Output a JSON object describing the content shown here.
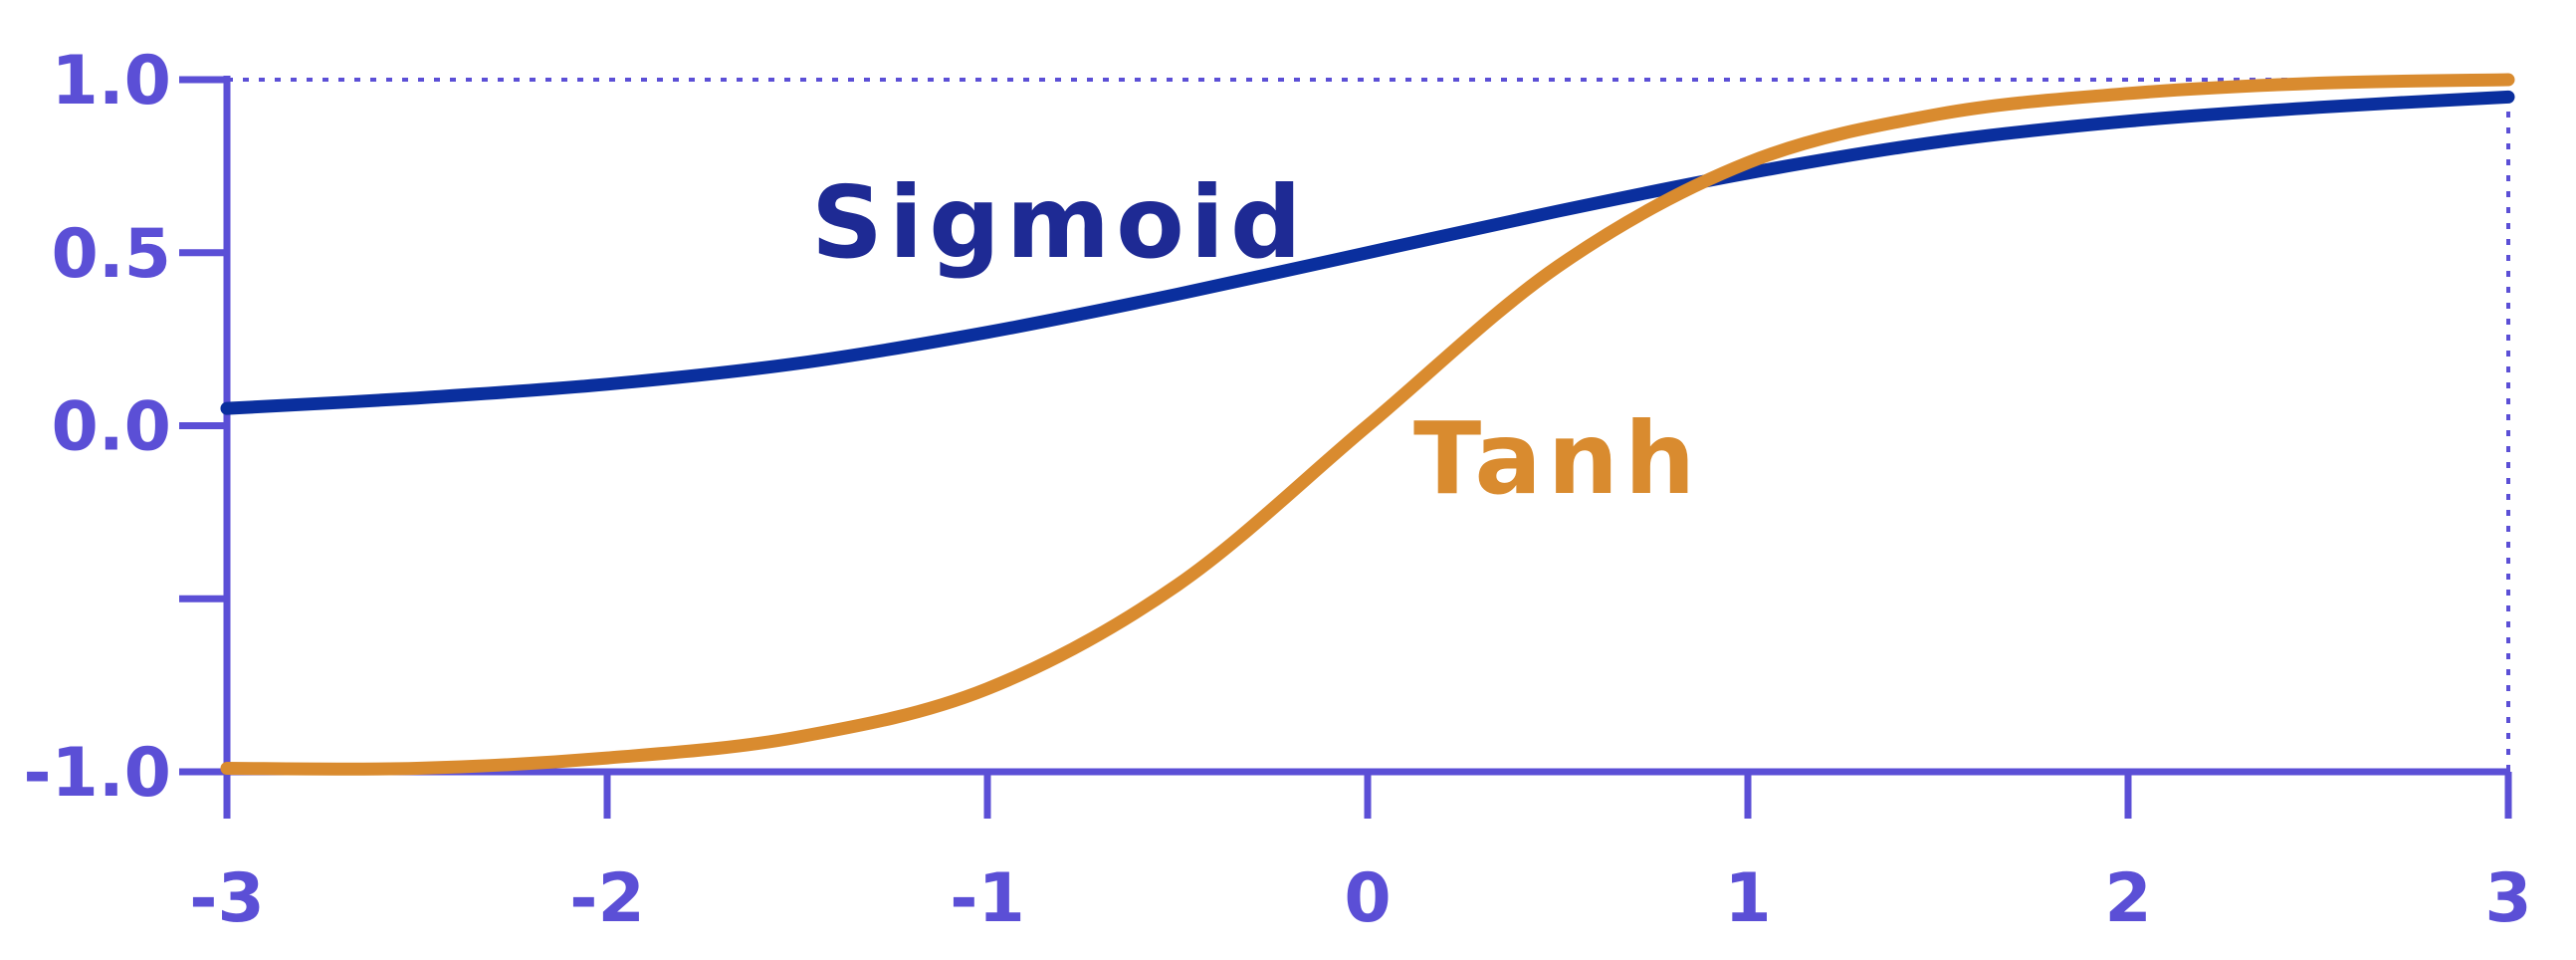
{
  "chart_data": {
    "type": "line",
    "title": "",
    "xlabel": "",
    "ylabel": "",
    "xlim": [
      -3,
      3
    ],
    "ylim": [
      -1,
      1
    ],
    "grid": false,
    "x_ticks": [
      -3,
      -2,
      -1,
      0,
      1,
      2,
      3
    ],
    "x_tick_labels": [
      "-3",
      "-2",
      "-1",
      "0",
      "1",
      "2",
      "3"
    ],
    "y_ticks": [
      -1.0,
      -0.5,
      0.0,
      0.5,
      1.0
    ],
    "y_tick_labels": [
      "-1.0",
      "",
      "0.0",
      "0.5",
      "1.0"
    ],
    "series": [
      {
        "name": "Sigmoid",
        "color": "#0a2f9e",
        "x": [
          -3,
          -2.5,
          -2,
          -1.5,
          -1,
          -0.5,
          0,
          0.5,
          1,
          1.5,
          2,
          2.5,
          3
        ],
        "y": [
          0.05,
          0.08,
          0.12,
          0.18,
          0.27,
          0.38,
          0.5,
          0.62,
          0.73,
          0.82,
          0.88,
          0.92,
          0.95
        ]
      },
      {
        "name": "Tanh",
        "color": "#d98b2f",
        "x": [
          -3,
          -2.5,
          -2,
          -1.5,
          -1,
          -0.5,
          0,
          0.5,
          1,
          1.5,
          2,
          2.5,
          3
        ],
        "y": [
          -0.99,
          -0.99,
          -0.96,
          -0.9,
          -0.76,
          -0.46,
          0.0,
          0.46,
          0.76,
          0.9,
          0.96,
          0.99,
          1.0
        ]
      }
    ],
    "labels": {
      "sigmoid": "Sigmoid",
      "tanh": "Tanh"
    },
    "colors": {
      "axis": "#5b4fd6",
      "tick_text": "#5b4fd6"
    }
  }
}
